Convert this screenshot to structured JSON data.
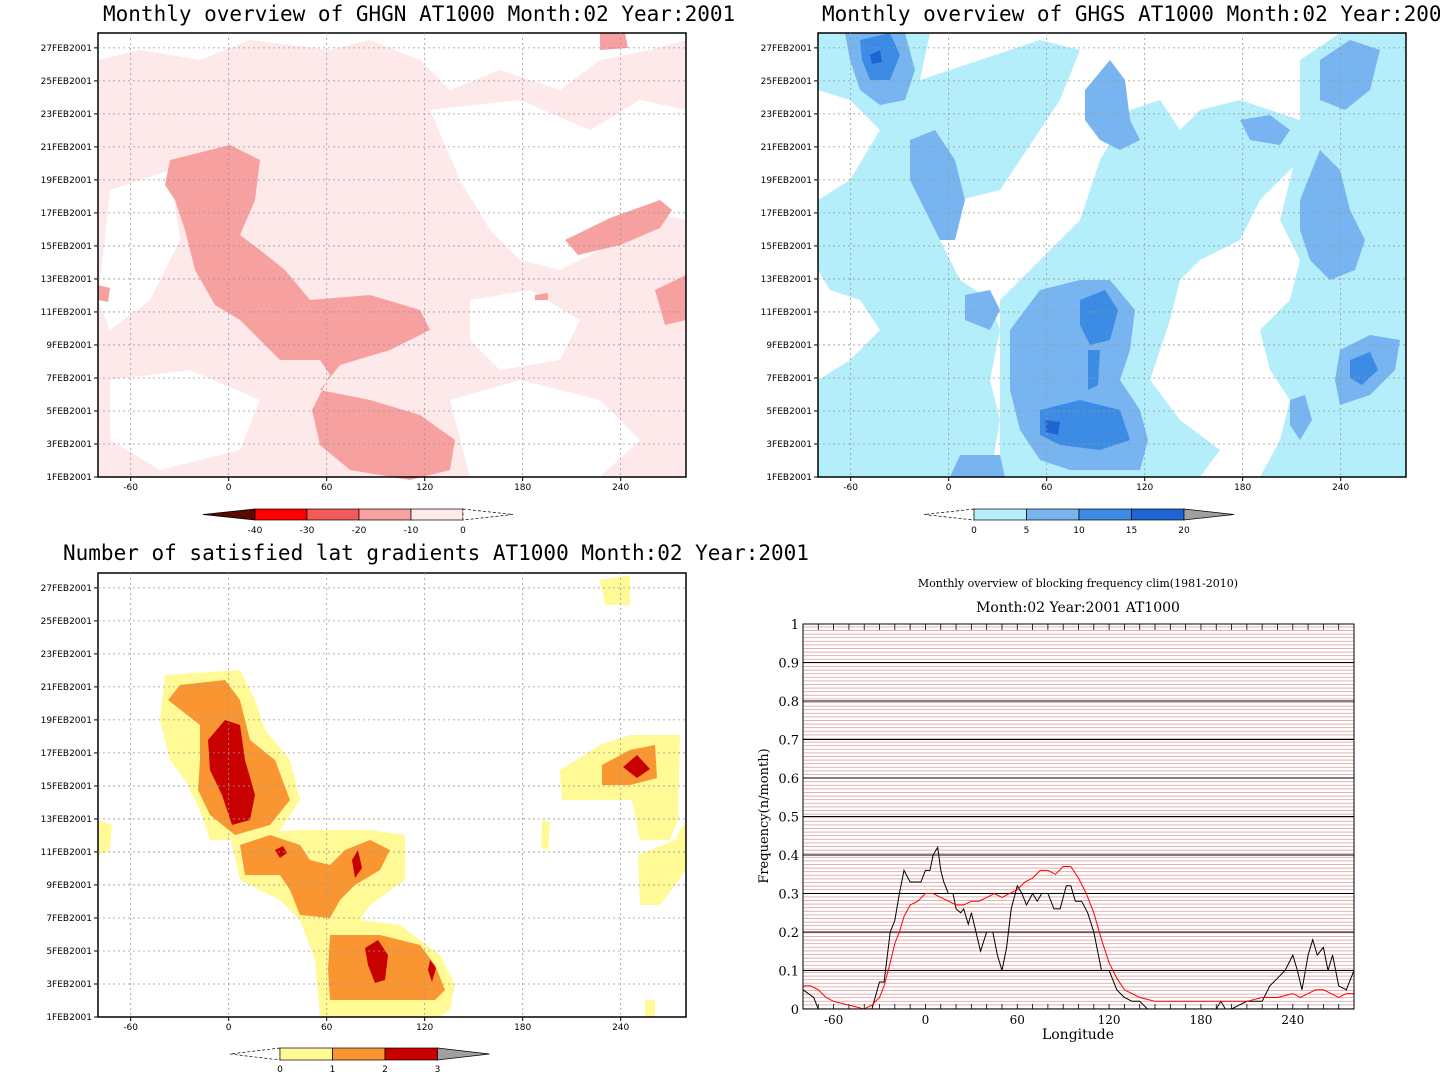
{
  "panels": {
    "ghgn": {
      "title": "Monthly overview of GHGN AT1000 Month:02 Year:2001",
      "colorbar": {
        "labels": [
          "-40",
          "-30",
          "-20",
          "-10",
          "0"
        ],
        "colors": [
          "#5a0a00",
          "#ff0000",
          "#f55a5a",
          "#f7a0a0",
          "#fde9e9"
        ]
      }
    },
    "ghgs": {
      "title": "Monthly overview of GHGS AT1000 Month:02 Year:2001",
      "colorbar": {
        "labels": [
          "0",
          "5",
          "10",
          "15",
          "20"
        ],
        "colors": [
          "#b4eefa",
          "#78b4f0",
          "#3c8ce6",
          "#1e64d2",
          "#a0a0a0"
        ]
      }
    },
    "gradients": {
      "title": "Number of satisfied lat gradients AT1000 Month:02 Year:2001",
      "colorbar": {
        "labels": [
          "0",
          "1",
          "2",
          "3"
        ],
        "colors": [
          "#fffa96",
          "#fa9632",
          "#c80000",
          "#a0a0a0"
        ]
      }
    },
    "blocking": {
      "title_line1": "Monthly overview of blocking frequency clim(1981-2010)",
      "title_line2": "Month:02 Year:2001  AT1000"
    }
  },
  "map_axes": {
    "x_ticks": [
      "-60",
      "0",
      "60",
      "120",
      "180",
      "240"
    ],
    "y_ticks": [
      "1FEB2001",
      "3FEB2001",
      "5FEB2001",
      "7FEB2001",
      "9FEB2001",
      "11FEB2001",
      "13FEB2001",
      "15FEB2001",
      "17FEB2001",
      "19FEB2001",
      "21FEB2001",
      "23FEB2001",
      "25FEB2001",
      "27FEB2001"
    ]
  },
  "chart_data": [
    {
      "type": "heatmap",
      "title": "Monthly overview of GHGN AT1000 Month:02 Year:2001",
      "x_ticks": [
        -60,
        0,
        60,
        120,
        180,
        240
      ],
      "xlim": [
        -80,
        280
      ],
      "y_ticks": [
        "1FEB2001",
        "3FEB2001",
        "5FEB2001",
        "7FEB2001",
        "9FEB2001",
        "11FEB2001",
        "13FEB2001",
        "15FEB2001",
        "17FEB2001",
        "19FEB2001",
        "21FEB2001",
        "23FEB2001",
        "25FEB2001",
        "27FEB2001"
      ],
      "levels": [
        -40,
        -30,
        -20,
        -10,
        0
      ],
      "colors": [
        "#5a0a00",
        "#ff0000",
        "#f55a5a",
        "#f7a0a0",
        "#fde9e9"
      ]
    },
    {
      "type": "heatmap",
      "title": "Monthly overview of GHGS AT1000 Month:02 Year:2001",
      "x_ticks": [
        -60,
        0,
        60,
        120,
        180,
        240
      ],
      "xlim": [
        -80,
        280
      ],
      "levels": [
        0,
        5,
        10,
        15,
        20
      ],
      "colors": [
        "#b4eefa",
        "#78b4f0",
        "#3c8ce6",
        "#1e64d2",
        "#a0a0a0"
      ]
    },
    {
      "type": "heatmap",
      "title": "Number of satisfied lat gradients AT1000 Month:02 Year:2001",
      "x_ticks": [
        -60,
        0,
        60,
        120,
        180,
        240
      ],
      "xlim": [
        -80,
        280
      ],
      "levels": [
        0,
        1,
        2,
        3
      ],
      "colors": [
        "#fffa96",
        "#fa9632",
        "#c80000",
        "#a0a0a0"
      ]
    },
    {
      "type": "line",
      "title": "Monthly overview of blocking frequency clim(1981-2010)",
      "subtitle": "Month:02 Year:2001  AT1000",
      "xlabel": "Longitude",
      "ylabel": "Frequency(n/month)",
      "xlim": [
        -80,
        280
      ],
      "ylim": [
        0,
        1
      ],
      "x_ticks": [
        -60,
        0,
        60,
        120,
        180,
        240
      ],
      "y_ticks": [
        0,
        0.1,
        0.2,
        0.3,
        0.4,
        0.5,
        0.6,
        0.7,
        0.8,
        0.9,
        1
      ],
      "x_tick_labels": [
        "-60",
        "0",
        "60",
        "120",
        "180",
        "240"
      ],
      "y_tick_labels": [
        "0",
        "0.1",
        "0.2",
        "0.3",
        "0.4",
        "0.5",
        "0.6",
        "0.7",
        "0.8",
        "0.9",
        "1"
      ],
      "series": [
        {
          "color": "#000000",
          "x": [
            -80,
            -73,
            -70,
            -65,
            -60,
            -55,
            -50,
            -45,
            -40,
            -35,
            -30,
            -27,
            -23,
            -20,
            -17,
            -14,
            -10,
            -7,
            -5,
            -3,
            0,
            3,
            5,
            8,
            10,
            12,
            15,
            18,
            20,
            23,
            25,
            28,
            30,
            33,
            36,
            40,
            44,
            47,
            50,
            53,
            56,
            60,
            63,
            66,
            70,
            73,
            76,
            80,
            84,
            88,
            92,
            95,
            98,
            102,
            106,
            110,
            115,
            120,
            125,
            130,
            135,
            140,
            145,
            150,
            160,
            170,
            180,
            190,
            193,
            196,
            200,
            205,
            210,
            215,
            220,
            225,
            230,
            235,
            240,
            243,
            246,
            250,
            253,
            256,
            260,
            263,
            266,
            270,
            275,
            280
          ],
          "y": [
            0.05,
            0.03,
            0,
            0,
            0,
            0,
            0,
            0,
            0,
            0,
            0.07,
            0.07,
            0.2,
            0.23,
            0.3,
            0.36,
            0.33,
            0.33,
            0.33,
            0.33,
            0.36,
            0.36,
            0.4,
            0.42,
            0.36,
            0.33,
            0.3,
            0.3,
            0.26,
            0.25,
            0.26,
            0.22,
            0.25,
            0.2,
            0.15,
            0.2,
            0.2,
            0.14,
            0.1,
            0.16,
            0.26,
            0.32,
            0.3,
            0.27,
            0.3,
            0.28,
            0.3,
            0.3,
            0.26,
            0.26,
            0.32,
            0.32,
            0.28,
            0.28,
            0.25,
            0.2,
            0.1,
            0.1,
            0.05,
            0.03,
            0.02,
            0.02,
            0,
            0,
            0,
            0,
            0,
            0,
            0.02,
            0,
            0,
            0.01,
            0.02,
            0.02,
            0.02,
            0.06,
            0.08,
            0.1,
            0.14,
            0.1,
            0.05,
            0.14,
            0.18,
            0.14,
            0.16,
            0.1,
            0.14,
            0.06,
            0.05,
            0.1
          ]
        },
        {
          "color": "#ff0000",
          "x": [
            -80,
            -75,
            -70,
            -65,
            -60,
            -50,
            -40,
            -35,
            -30,
            -27,
            -23,
            -20,
            -17,
            -14,
            -10,
            -5,
            0,
            5,
            10,
            15,
            20,
            25,
            30,
            35,
            40,
            45,
            50,
            55,
            60,
            65,
            70,
            75,
            80,
            85,
            90,
            95,
            100,
            105,
            110,
            115,
            120,
            125,
            130,
            140,
            150,
            160,
            170,
            180,
            190,
            200,
            210,
            220,
            230,
            240,
            245,
            250,
            255,
            260,
            265,
            270,
            275,
            280
          ],
          "y": [
            0.06,
            0.06,
            0.05,
            0.03,
            0.02,
            0.01,
            0,
            0.01,
            0.03,
            0.06,
            0.12,
            0.17,
            0.2,
            0.24,
            0.27,
            0.28,
            0.3,
            0.3,
            0.29,
            0.28,
            0.27,
            0.27,
            0.28,
            0.28,
            0.29,
            0.3,
            0.29,
            0.3,
            0.31,
            0.33,
            0.34,
            0.36,
            0.36,
            0.35,
            0.37,
            0.37,
            0.34,
            0.3,
            0.25,
            0.18,
            0.12,
            0.08,
            0.05,
            0.03,
            0.02,
            0.02,
            0.02,
            0.02,
            0.02,
            0.02,
            0.02,
            0.03,
            0.03,
            0.04,
            0.03,
            0.04,
            0.05,
            0.05,
            0.04,
            0.03,
            0.04,
            0.04
          ]
        }
      ]
    }
  ]
}
